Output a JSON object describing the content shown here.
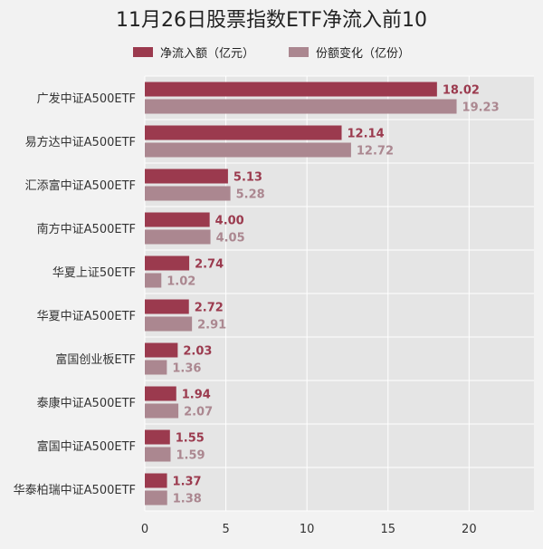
{
  "chart_data": {
    "type": "bar",
    "orientation": "horizontal",
    "title": "11月26日股票指数ETF净流入前10",
    "categories": [
      "广发中证A500ETF",
      "易方达中证A500ETF",
      "汇添富中证A500ETF",
      "南方中证A500ETF",
      "华夏上证50ETF",
      "华夏中证A500ETF",
      "富国创业板ETF",
      "泰康中证A500ETF",
      "富国中证A500ETF",
      "华泰柏瑞中证A500ETF"
    ],
    "series": [
      {
        "name": "净流入额（亿元）",
        "color": "#9b3a4e",
        "values": [
          18.02,
          12.14,
          5.13,
          4.0,
          2.74,
          2.72,
          2.03,
          1.94,
          1.55,
          1.37
        ],
        "labels": [
          "18.02",
          "12.14",
          "5.13",
          "4.00",
          "2.74",
          "2.72",
          "2.03",
          "1.94",
          "1.55",
          "1.37"
        ]
      },
      {
        "name": "份额变化（亿份）",
        "color": "#ab8790",
        "values": [
          19.23,
          12.72,
          5.28,
          4.05,
          1.02,
          2.91,
          1.36,
          2.07,
          1.59,
          1.38
        ],
        "labels": [
          "19.23",
          "12.72",
          "5.28",
          "4.05",
          "1.02",
          "2.91",
          "1.36",
          "2.07",
          "1.59",
          "1.38"
        ]
      }
    ],
    "xlim": [
      0,
      24
    ],
    "xticks": [
      "0",
      "5",
      "10",
      "15",
      "20"
    ],
    "grid": true,
    "legend_position": "top"
  }
}
